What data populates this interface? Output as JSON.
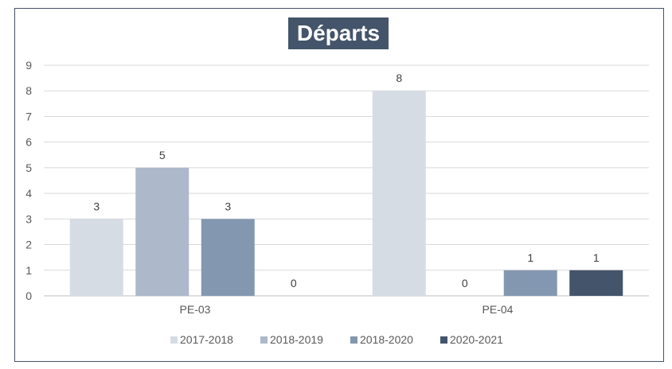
{
  "chart_data": {
    "type": "bar",
    "title": "Départs",
    "categories": [
      "PE-03",
      "PE-04"
    ],
    "series": [
      {
        "name": "2017-2018",
        "values": [
          3,
          8
        ],
        "color": "#d6dce4"
      },
      {
        "name": "2018-2019",
        "values": [
          5,
          0
        ],
        "color": "#adb9ca"
      },
      {
        "name": "2018-2020",
        "values": [
          3,
          1
        ],
        "color": "#8497b0"
      },
      {
        "name": "2020-2021",
        "values": [
          0,
          1
        ],
        "color": "#44546a"
      }
    ],
    "ylim": [
      0,
      9
    ],
    "yticks": [
      "0",
      "1",
      "2",
      "3",
      "4",
      "5",
      "6",
      "7",
      "8",
      "9"
    ],
    "grid": true,
    "legend": "bottom"
  }
}
